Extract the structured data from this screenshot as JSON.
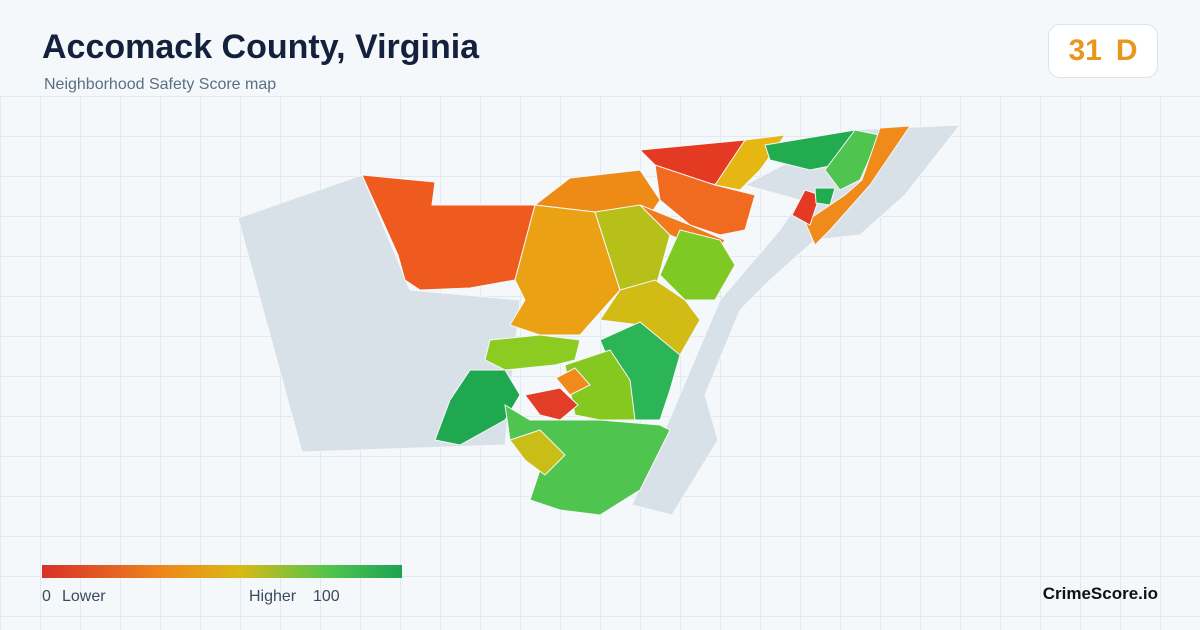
{
  "header": {
    "title": "Accomack County, Virginia",
    "subtitle": "Neighborhood Safety Score map"
  },
  "score": {
    "value": 31,
    "grade": "D"
  },
  "legend": {
    "min": 0,
    "min_label": "Lower",
    "max_label": "Higher",
    "max": 100
  },
  "footer": {
    "brand": "CrimeScore.io"
  }
}
